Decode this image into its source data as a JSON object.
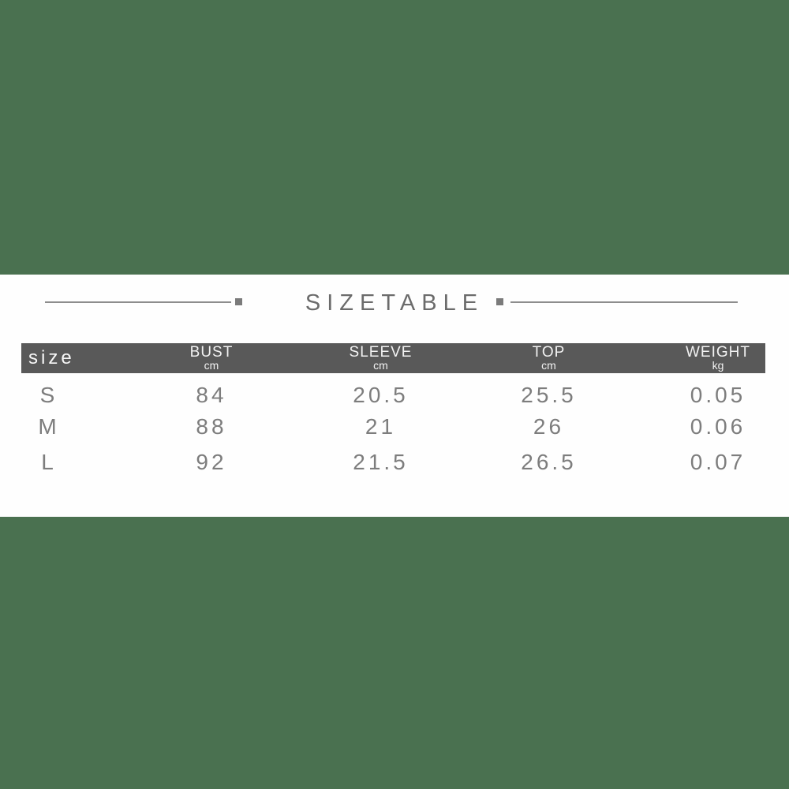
{
  "colors": {
    "background_green": "#4a7150",
    "panel_white": "#fefefe",
    "header_bar_gray": "#595959",
    "header_text": "#f2f2f2",
    "body_text_gray": "#7d7d7d",
    "title_gray": "#6b6b6b",
    "rule_gray": "#8d8d8d"
  },
  "chart_data": {
    "type": "table",
    "title": "SIZETABLE",
    "columns": [
      {
        "label": "size",
        "unit": ""
      },
      {
        "label": "BUST",
        "unit": "cm"
      },
      {
        "label": "SLEEVE",
        "unit": "cm"
      },
      {
        "label": "TOP",
        "unit": "cm"
      },
      {
        "label": "WEIGHT",
        "unit": "kg"
      }
    ],
    "rows": [
      {
        "cells": [
          "S",
          "84",
          "20.5",
          "25.5",
          "0.05"
        ]
      },
      {
        "cells": [
          "M",
          "88",
          "21",
          "26",
          "0.06"
        ]
      },
      {
        "cells": [
          "L",
          "92",
          "21.5",
          "26.5",
          "0.07"
        ]
      }
    ]
  }
}
